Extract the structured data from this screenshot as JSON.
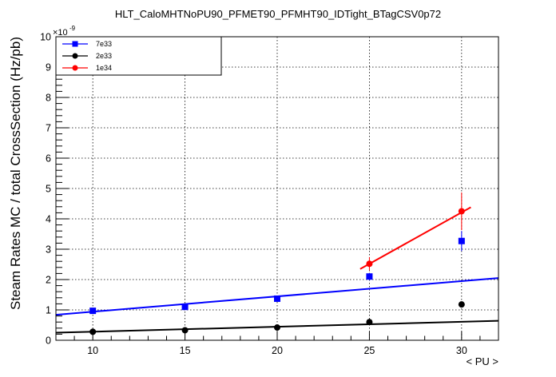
{
  "chart_data": {
    "type": "scatter",
    "title": "HLT_CaloMHTNoPU90_PFMET90_PFMHT90_IDTight_BTagCSV0p72",
    "xlabel": "< PU >",
    "ylabel": "Steam Rates MC / total CrossSection (Hz/pb)",
    "y_multiplier_label": "×10",
    "y_multiplier_exponent": "-9",
    "xlim": [
      8,
      32
    ],
    "ylim": [
      0,
      10
    ],
    "x_ticks": [
      10,
      15,
      20,
      25,
      30
    ],
    "y_ticks": [
      0,
      1,
      2,
      3,
      4,
      5,
      6,
      7,
      8,
      9,
      10
    ],
    "grid": true,
    "legend_position": "top-left",
    "series": [
      {
        "name": "7e33",
        "color": "#0000ff",
        "marker": "square",
        "x": [
          10,
          15,
          20,
          25,
          30
        ],
        "y": [
          0.97,
          1.1,
          1.37,
          2.1,
          3.27
        ],
        "yerr": [
          0.05,
          0.06,
          0.08,
          0.12,
          0.33
        ],
        "fit": {
          "x0": 8,
          "y0": 0.84,
          "x1": 32,
          "y1": 2.05
        }
      },
      {
        "name": "2e33",
        "color": "#000000",
        "marker": "circle",
        "x": [
          10,
          15,
          20,
          25,
          30
        ],
        "y": [
          0.28,
          0.33,
          0.42,
          0.6,
          1.18
        ],
        "yerr": [
          0.03,
          0.03,
          0.04,
          0.05,
          0.08
        ],
        "fit": {
          "x0": 8,
          "y0": 0.25,
          "x1": 32,
          "y1": 0.64
        }
      },
      {
        "name": "1e34",
        "color": "#ff0000",
        "marker": "circle",
        "x": [
          25,
          30
        ],
        "y": [
          2.52,
          4.25
        ],
        "yerr": [
          0.22,
          0.62
        ],
        "fit": {
          "x0": 24.5,
          "y0": 2.35,
          "x1": 30.5,
          "y1": 4.38
        }
      }
    ]
  }
}
